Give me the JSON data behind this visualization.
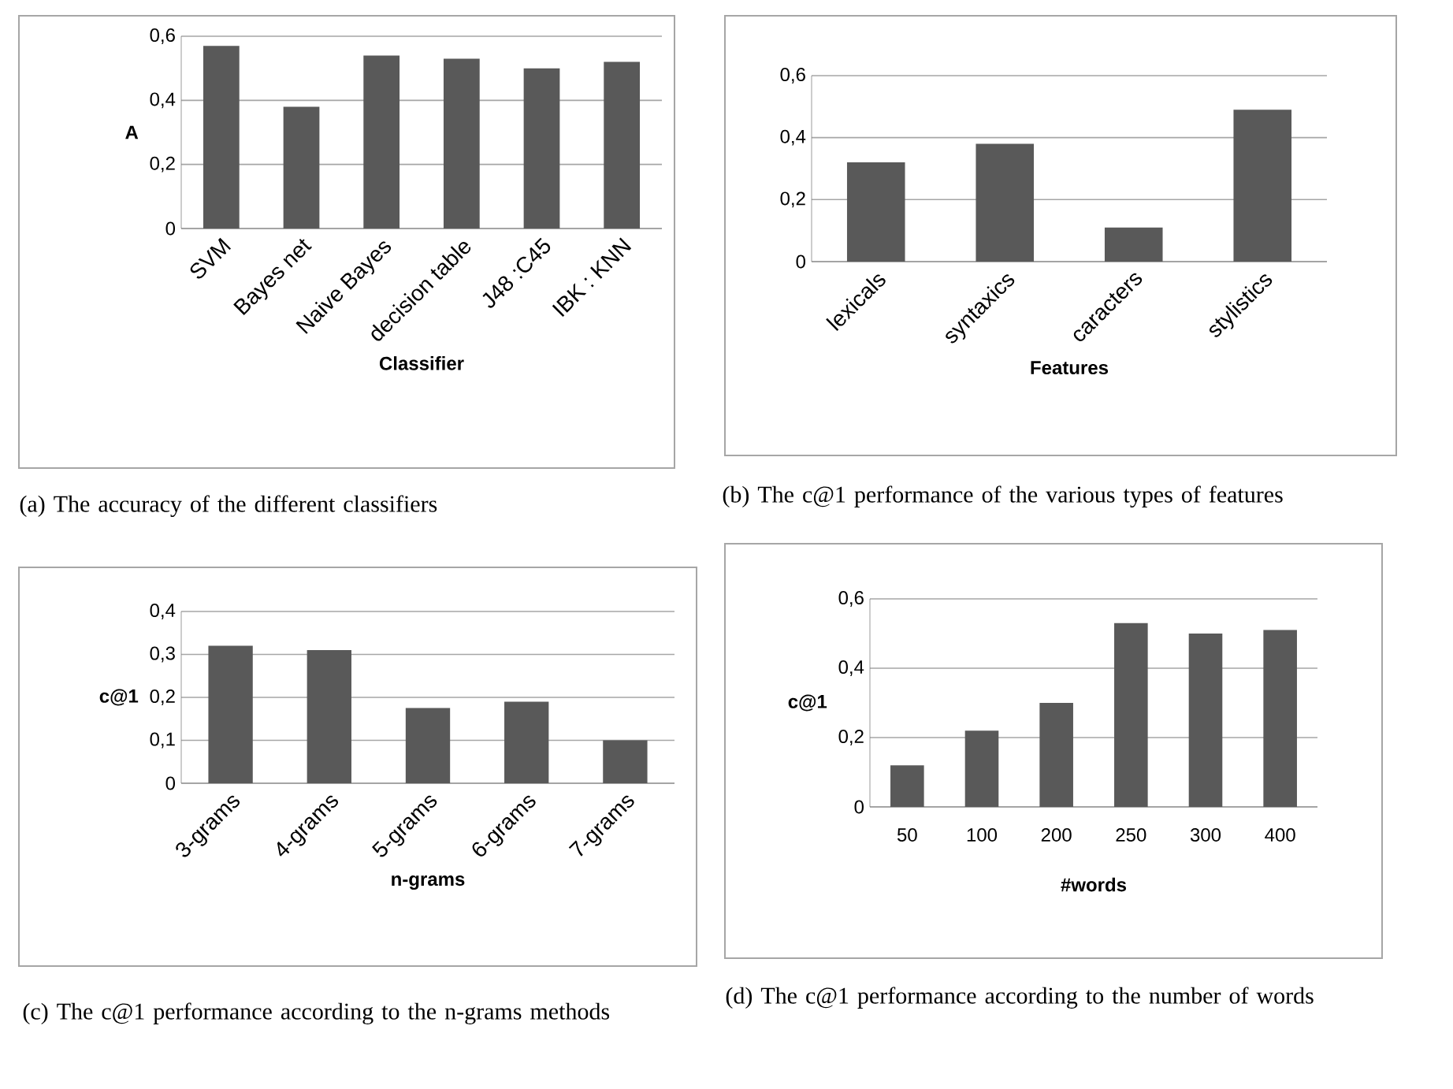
{
  "chart_data": [
    {
      "type": "bar",
      "xlabel": "Classifier",
      "ylabel": "A",
      "categories": [
        "SVM",
        "Bayes net",
        "Naive Bayes",
        "decision table",
        "J48 :C45",
        "IBK : KNN"
      ],
      "values": [
        0.57,
        0.38,
        0.54,
        0.53,
        0.5,
        0.52
      ],
      "color": "#595959",
      "ylim": [
        0,
        0.6
      ],
      "yticks": [
        0,
        {
          "value": 0.2,
          "label": "0,2"
        },
        {
          "value": 0.4,
          "label": "0,4"
        },
        {
          "value": 0.6,
          "label": "0,6"
        }
      ],
      "grid": "y",
      "annotations": [
        "(a) The accuracy  of the different classifiers"
      ]
    },
    {
      "type": "bar",
      "xlabel": "Features",
      "categories": [
        "lexicals",
        "syntaxics",
        "caracters",
        "stylistics"
      ],
      "values": [
        0.32,
        0.38,
        0.11,
        0.49
      ],
      "color": "#595959",
      "ylim": [
        0,
        0.6
      ],
      "yticks": [
        0,
        {
          "value": 0.2,
          "label": "0,2"
        },
        {
          "value": 0.4,
          "label": "0,4"
        },
        {
          "value": 0.6,
          "label": "0,6"
        }
      ],
      "grid": "y",
      "annotations": [
        "(b) The c@1 performance of the various types of features"
      ]
    },
    {
      "type": "bar",
      "xlabel": "n-grams",
      "ylabel": "c@1",
      "categories": [
        "3-grams",
        "4-grams",
        "5-grams",
        "6-grams",
        "7-grams"
      ],
      "values": [
        0.32,
        0.31,
        0.175,
        0.19,
        0.1
      ],
      "color": "#595959",
      "ylim": [
        0,
        0.4
      ],
      "yticks": [
        0,
        {
          "value": 0.1,
          "label": "0,1"
        },
        {
          "value": 0.2,
          "label": "0,2"
        },
        {
          "value": 0.3,
          "label": "0,3"
        },
        {
          "value": 0.4,
          "label": "0,4"
        }
      ],
      "grid": "y",
      "annotations": [
        "(c) The c@1 performance according to the n-grams methods"
      ]
    },
    {
      "type": "bar",
      "xlabel": "#words",
      "ylabel": "c@1",
      "categories": [
        "50",
        "100",
        "200",
        "250",
        "300",
        "400"
      ],
      "values": [
        0.12,
        0.22,
        0.3,
        0.53,
        0.5,
        0.51
      ],
      "color": "#595959",
      "ylim": [
        0,
        0.6
      ],
      "yticks": [
        0,
        {
          "value": 0.2,
          "label": "0,2"
        },
        {
          "value": 0.4,
          "label": "0,4"
        },
        {
          "value": 0.6,
          "label": "0,6"
        }
      ],
      "grid": "y",
      "annotations": [
        "(d) The c@1 performance according to the number of words"
      ]
    }
  ]
}
